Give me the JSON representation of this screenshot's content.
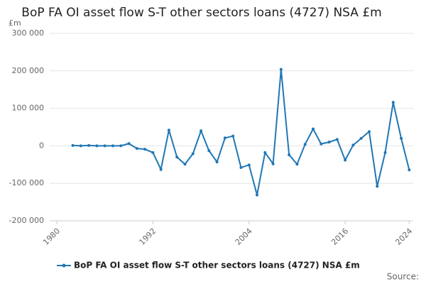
{
  "chart_data": {
    "type": "line",
    "title": "BoP FA OI asset flow S-T other sectors loans (4727) NSA £m",
    "y_unit": "£m",
    "source": "Source:",
    "x": [
      1982,
      1983,
      1984,
      1985,
      1986,
      1987,
      1988,
      1989,
      1990,
      1991,
      1992,
      1993,
      1994,
      1995,
      1996,
      1997,
      1998,
      1999,
      2000,
      2001,
      2002,
      2003,
      2004,
      2005,
      2006,
      2007,
      2008,
      2009,
      2010,
      2011,
      2012,
      2013,
      2014,
      2015,
      2016,
      2017,
      2018,
      2019,
      2020,
      2021,
      2022,
      2023,
      2024
    ],
    "series": [
      {
        "name": "BoP FA OI asset flow S-T other sectors loans (4727) NSA £m",
        "color": "#2077b4",
        "values": [
          1000,
          0,
          1000,
          0,
          0,
          0,
          0,
          6000,
          -7000,
          -9000,
          -18000,
          -63000,
          42000,
          -30000,
          -49000,
          -21000,
          40000,
          -13000,
          -43000,
          21000,
          26000,
          -58000,
          -51000,
          -131000,
          -18000,
          -48000,
          204000,
          -24000,
          -49000,
          4000,
          45000,
          5000,
          10000,
          17000,
          -38000,
          2000,
          20000,
          38000,
          -108000,
          -18000,
          116000,
          20000,
          -64000
        ]
      }
    ],
    "xlim": [
      1980,
      2024.5
    ],
    "xticks": [
      1980,
      1992,
      2004,
      2016,
      2024
    ],
    "ylim": [
      -200000,
      300000
    ],
    "yticks": [
      {
        "value": -200000,
        "label": "-200 000"
      },
      {
        "value": -100000,
        "label": "-100 000"
      },
      {
        "value": 0,
        "label": "0"
      },
      {
        "value": 100000,
        "label": "100 000"
      },
      {
        "value": 200000,
        "label": "200 000"
      },
      {
        "value": 300000,
        "label": "300 000"
      }
    ],
    "grid": true
  }
}
